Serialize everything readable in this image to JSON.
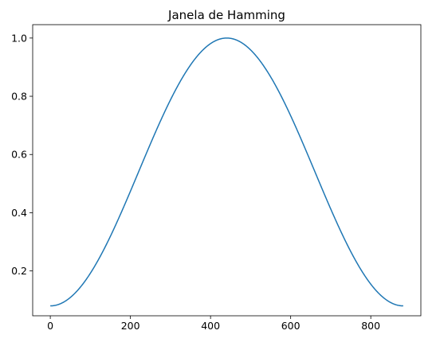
{
  "chart_data": {
    "type": "line",
    "title": "Janela de Hamming",
    "xlabel": "",
    "ylabel": "",
    "xlim": [
      -44,
      925
    ],
    "ylim": [
      0.046,
      1.046
    ],
    "x_ticks": [
      0,
      200,
      400,
      600,
      800
    ],
    "y_ticks": [
      0.2,
      0.4,
      0.6,
      0.8,
      1.0
    ],
    "x_tick_labels": [
      "0",
      "200",
      "400",
      "600",
      "800"
    ],
    "y_tick_labels": [
      "0.2",
      "0.4",
      "0.6",
      "0.8",
      "1.0"
    ],
    "grid": false,
    "legend": "none",
    "series": [
      {
        "color": "#1f77b4",
        "window": "hamming",
        "length": 882,
        "x": [
          0,
          50,
          100,
          150,
          200,
          250,
          300,
          350,
          400,
          441,
          500,
          550,
          600,
          650,
          700,
          750,
          800,
          850,
          881
        ],
        "values": [
          0.08,
          0.109,
          0.194,
          0.322,
          0.474,
          0.632,
          0.78,
          0.904,
          0.981,
          1.0,
          0.96,
          0.858,
          0.715,
          0.558,
          0.404,
          0.266,
          0.159,
          0.095,
          0.08
        ]
      }
    ]
  }
}
